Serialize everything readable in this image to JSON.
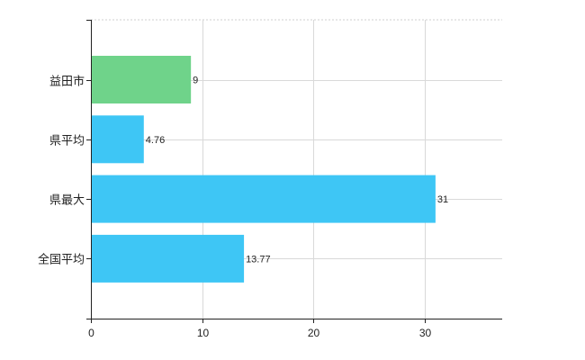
{
  "chart_data": {
    "type": "bar",
    "orientation": "horizontal",
    "categories": [
      "益田市",
      "県平均",
      "県最大",
      "全国平均"
    ],
    "values": [
      9,
      4.76,
      31,
      13.77
    ],
    "value_labels": [
      "9",
      "4.76",
      "31",
      "13.77"
    ],
    "bar_colors": [
      "#6fd38a",
      "#3ec6f5",
      "#3ec6f5",
      "#3ec6f5"
    ],
    "highlight_color": "#6fd38a",
    "bar_color": "#3ec6f5",
    "xlim": [
      0,
      37
    ],
    "xticks": [
      0,
      10,
      20,
      30
    ],
    "title": "",
    "xlabel": "",
    "ylabel": "",
    "grid": true,
    "legend": "none"
  }
}
